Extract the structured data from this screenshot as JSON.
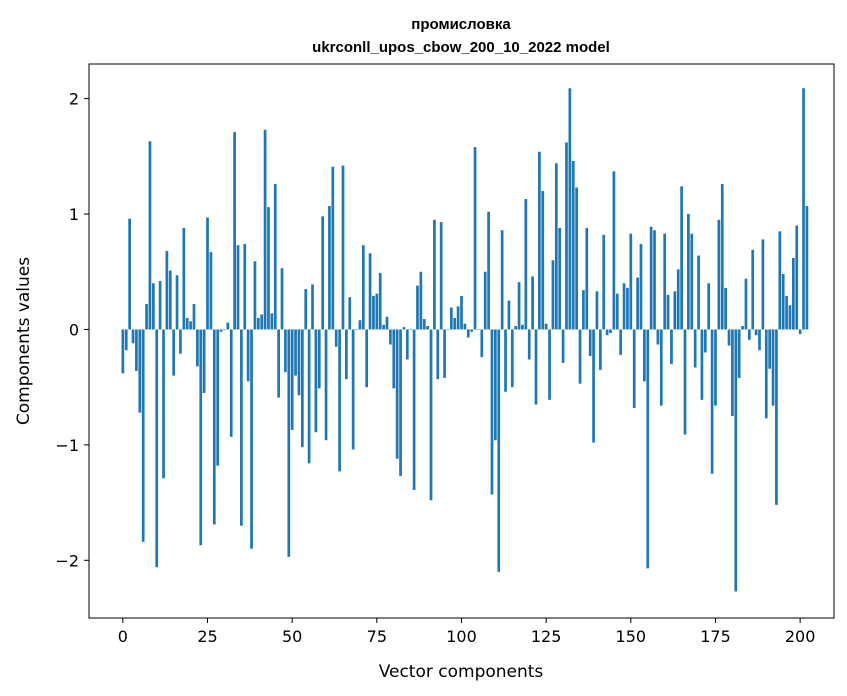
{
  "chart_data": {
    "type": "bar",
    "title_line1": "промисловка",
    "title_line2": "ukrconll_upos_cbow_200_10_2022 model",
    "xlabel": "Vector components",
    "ylabel": "Components values",
    "xlim": [
      -10,
      210
    ],
    "ylim": [
      -2.5,
      2.3
    ],
    "xticks": [
      0,
      25,
      50,
      75,
      100,
      125,
      150,
      175,
      200
    ],
    "xtick_labels": [
      "0",
      "25",
      "50",
      "75",
      "100",
      "125",
      "150",
      "175",
      "200"
    ],
    "yticks": [
      -2,
      -1,
      0,
      1,
      2
    ],
    "ytick_labels": [
      "−2",
      "−1",
      "0",
      "1",
      "2"
    ],
    "bar_color": "#1f77b4",
    "values": [
      -0.38,
      -0.18,
      0.96,
      -0.12,
      -0.36,
      -0.72,
      -1.84,
      0.22,
      1.63,
      0.4,
      -2.06,
      0.42,
      -1.29,
      0.68,
      0.51,
      -0.4,
      0.47,
      -0.21,
      0.88,
      0.1,
      0.07,
      0.22,
      -0.32,
      -1.87,
      -0.55,
      0.97,
      0.67,
      -1.69,
      -1.18,
      -0.02,
      0.0,
      0.06,
      -0.93,
      1.71,
      0.73,
      -1.7,
      0.74,
      -0.45,
      -1.9,
      0.59,
      0.1,
      0.13,
      1.73,
      1.06,
      0.14,
      1.26,
      -0.59,
      0.53,
      -0.37,
      -1.97,
      -0.87,
      -0.4,
      -0.57,
      -1.02,
      0.35,
      -1.16,
      0.39,
      -0.89,
      -0.51,
      0.98,
      -0.96,
      1.07,
      1.41,
      -0.15,
      -1.23,
      1.42,
      -0.43,
      0.28,
      -1.04,
      0.0,
      0.08,
      0.73,
      -0.5,
      0.66,
      0.29,
      0.31,
      0.49,
      0.04,
      0.11,
      -0.13,
      -0.51,
      -1.12,
      -1.27,
      0.02,
      -0.26,
      0.0,
      -1.39,
      0.38,
      0.5,
      0.09,
      0.03,
      -1.48,
      0.95,
      -0.43,
      0.93,
      -0.42,
      0.0,
      0.19,
      0.1,
      0.2,
      0.29,
      0.05,
      -0.07,
      -0.02,
      1.58,
      0.0,
      -0.24,
      0.5,
      1.02,
      -1.43,
      -0.96,
      -2.1,
      0.86,
      -0.54,
      0.25,
      -0.5,
      0.03,
      0.41,
      0.04,
      1.13,
      -0.26,
      0.46,
      -0.65,
      1.54,
      1.2,
      0.05,
      -0.61,
      0.6,
      1.44,
      0.88,
      -0.29,
      1.62,
      2.09,
      1.46,
      1.23,
      -0.47,
      0.34,
      0.88,
      -0.23,
      -0.98,
      0.33,
      -0.35,
      0.82,
      -0.05,
      -0.03,
      1.37,
      0.31,
      -0.22,
      0.4,
      0.36,
      0.83,
      -0.68,
      0.45,
      0.74,
      -0.45,
      -2.07,
      0.89,
      0.86,
      -0.13,
      -0.66,
      0.83,
      0.3,
      -0.3,
      0.33,
      0.52,
      1.24,
      -0.91,
      1.0,
      0.83,
      -0.33,
      0.64,
      -0.61,
      -0.2,
      0.4,
      -1.25,
      -0.66,
      0.95,
      1.26,
      0.36,
      -0.14,
      -0.75,
      -2.27,
      -0.42,
      0.03,
      0.44,
      -0.09,
      0.69,
      -0.05,
      -0.18,
      0.78,
      -0.77,
      -0.34,
      -0.66,
      -1.52,
      0.85,
      0.48,
      0.29,
      0.21,
      0.62,
      0.9,
      -0.04,
      2.09,
      1.07
    ]
  }
}
